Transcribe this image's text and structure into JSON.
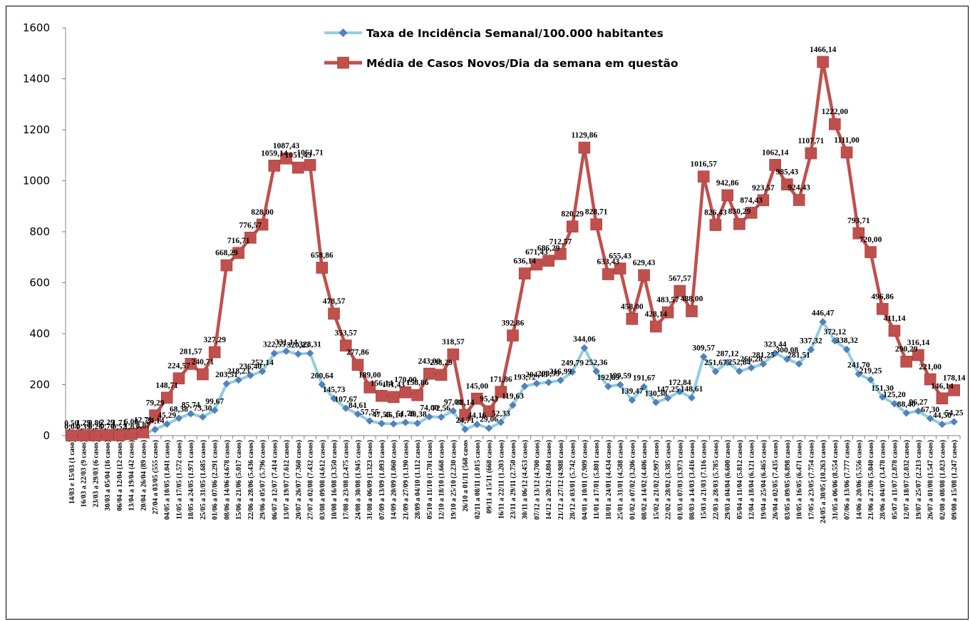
{
  "chart_data": {
    "type": "line",
    "title": "",
    "xlabel": "",
    "ylabel": "",
    "ylim": [
      0,
      1600
    ],
    "yticks": [
      0,
      200,
      400,
      600,
      800,
      1000,
      1200,
      1400,
      1600
    ],
    "grid": false,
    "legend_position": "top-center",
    "categories": [
      "14/03 e 15/03 (1 caso)",
      "16/03 a 22/03 (9 casos)",
      "23/03 a 29/03 (6 casos)",
      "30/03 a 05/04 (16 casos)",
      "06/04 a 12/04 (12 casos)",
      "13/04 a 19/04 (42 casos)",
      "20/04 a 26/04 (89 casos)",
      "27/04 a 03/05 (555 casos)",
      "04/05 a 10/05 (1.041 casos)",
      "11/05 a 17/05 (1.572 casos)",
      "18/05 a 24/05 (1.971 casos)",
      "25/05 a 31/05 (1.685 casos)",
      "01/06 a 07/06 (2.291 casos)",
      "08/06 a 14/06 (4.678 casos)",
      "15/06 a 21/06 (5.017 casos)",
      "22/06 a 28/06 (5.436 casos)",
      "29/06 a 05/07 (5.796 casos)",
      "06/07 a 12/07 (7.414 casos)",
      "13/07 a 19/07 (7.612 casos)",
      "20/07 a 26/07 (7.360 casos)",
      "27/07 a 02/08 (7.432 casos)",
      "03/08 a 09/08 (4.612 casos)",
      "10/08 a 16/08 (3.350 casos)",
      "17/08 a 23/08 (2.475 casos)",
      "24/08 a 30/08 (1.945 casos)",
      "31/08 a 06/09 (1.323 casos)",
      "07/09 a 13/09 (1.093 casos)",
      "14/09 a 20/09 (1.060 casos)",
      "21/09 a 27/09 (1.190 casos)",
      "28/09 a 04/10 (1.112 casos)",
      "05/10 a 11/10 (1.701 casos)",
      "12/10 a 18/10 (1.668 casos)",
      "19/10 a 25/10 (2.230 casos)",
      "26/10 a 01/11 (568 casos)",
      "02/11 a 08/11 (1.015 casos)",
      "09/11 a 15/11 (668 casos)",
      "16/11 a 22/11 (1.203 casos)",
      "23/11 a 29/11 (2.750 casos)",
      "30/11 a 06/12 (4.453 casos)",
      "07/12 a 13/12 (4.700 casos)",
      "14/12 a 20/12 (4.804 casos)",
      "21/12 a 27/12 (4.988 casos)",
      "28/12 a 03/01 (5.742 casos)",
      "04/01 a 10/01 (7.909 casos)",
      "11/01 a 17/01 (5.801 casos)",
      "18/01 a 24/01 (4.434 casos)",
      "25/01 a 31/01 (4.588 casos)",
      "01/02 a 07/02 (3.206 casos)",
      "08/02 a 14/02 (4.406 casos)",
      "15/02 a 21/02 (2.997 casos)",
      "22/02 a 28/02 (3.385 casos)",
      "01/03 a 07/03 (3.973 casos)",
      "08/03 a 14/03 (3.416 casos)",
      "15/03 a 21/03 (7.116 casos)",
      "22/03 a 28/03 (5.785 casos)",
      "29/03 a 04/04 (6.600 casos)",
      "05/04 a 11/04 (5.812 casos)",
      "12/04 a 18/04 (6.121 casos)",
      "19/04 a 25/04 (6.465 casos)",
      "26/04 a 02/05 (7.435 casos)",
      "03/05 a 09/05 (6.898 casos)",
      "10/05 a 16/05 (6.471 casos)",
      "17/05 a 23/05 (7.754 casos)",
      "24/05 a 30/05 (10.263 casos)",
      "31/05 a 06/06 (8.554 casos)",
      "07/06 a 13/06 (7.777 casos)",
      "14/06 a 20/06 (5.556 casos)",
      "21/06 a 27/06 (5.040 casos)",
      "28/06 a 04/07 (3.478 casos)",
      "05/07 a 11/07 (2.878 casos)",
      "12/07 a 18/07 (2.032 casos)",
      "19/07 a 25/07 (2.213 casos)",
      "26/07 a 01/08 (1.547 casos)",
      "02/08 a 08/08 (1.023 casos)",
      "09/08 a 15/08 (1.247 casos)"
    ],
    "xtick_labels": [
      "14/03 e 15/03 (1 caso)",
      "16/03 a 22/03 (9 casos)",
      "23/03 a 29/03 (6 casos)",
      "30/03 a 05/04 (16 casos)",
      "06/04 a 12/04 (12 casos)",
      "13/04 a 19/04 (42 casos)",
      "20/04 a 26/04 (89 casos)",
      "27/04 a 03/05 (555 casos)",
      "04/05 a 10/05 (1.041 casos)",
      "11/05 a 17/05 (1.572 casos)",
      "18/05 a 24/05 (1.971 casos)",
      "25/05 a 31/05 (1.685 casos)",
      "01/06 a 07/06 (2.291 casos)",
      "08/06 a 14/06 (4.678 casos)",
      "15/06 a 21/06 (5.017 casos)",
      "22/06 a 28/06 (5.436 casos)",
      "29/06 a 05/07 (5.796 casos)",
      "06/07 a 12/07 (7.414 casos)",
      "13/07 a 19/07 (7.612 casos)",
      "20/07 a 26/07 (7.360 casos)",
      "27/07 a 02/08 (7.432 casos)",
      "03/08 a 09/08 (4.612 casos)",
      "10/08 a 16/08 (3.350 casos)",
      "17/08 a 23/08 (2.475 casos)",
      "24/08 a 30/08 (1.945 casos)",
      "31/08 a 06/09 (1.323 casos)",
      "07/09 a 13/09 (1.093 casos)",
      "14/09 a 20/09 (1.060 casos)",
      "21/09 a 27/09 (1.190 casos)",
      "28/09 a 04/10 (1.112 casos)",
      "05/10 a 11/10 (1.701 casos)",
      "12/10 a 18/10 (1.668 casos)",
      "19/10 a 25/10 (2.230 casos)",
      "26/10 a 01/11 (568 casos",
      "02/11 a 08/11 (1.015 casos)",
      "09/11 a 15/11 (668 casos)",
      "16/11 a 22/11 (1.203 casos)",
      "23/11 a 29/11 (2.750 casos)",
      "30/11 a 06/12 (4.453 casos)",
      "07/12 a 13/12 (4.700 casos)",
      "14/12 a 20/12 (4.804 casos)",
      "21/12 a 27/12 (4.988 casos)",
      "28/12 a 03/01 (5.742 casos)",
      "04/01 a 10/01 (7.909 casos)",
      "11/01 a 17/01 (5.801 casos)",
      "18/01 a 24/01 (4.434 casos)",
      "25/01 a 31/01 (4.588 casos)",
      "01/02 a 07/02 (3.206 casos)",
      "08/02 a 14/02 (4.406 casos)",
      "15/02 a 21/02 (2.997 casos)",
      "22/02 a 28/02 (3.385 casos)",
      "01/03 a 07/03 (3.973 casos)",
      "08/03 a 14/03 (3.416 casos)",
      "15/03 a 21/03 (7.116 casos)",
      "22/03 a 28/03 (5.785 casos)",
      "29/03 a 04/04 (6.600 casos)",
      "05/04 a 11/04 (5.812 casos)",
      "12/04 a 18/04 (6.121 casos)",
      "19/04 a 25/04 (6.465 casos)",
      "26/04 a 02/05 (7.435 casos)",
      "03/05 a 09/05 (6.898 casos)",
      "10/05 a 16/05 (6.471 casos)",
      "17/05 a 23/05 (7.754 casos)",
      "24/05 a 30/05 (10.263 casos)",
      "31/05 a 06/06 (8.554 casos)",
      "07/06 a 13/06 (7.777 casos)",
      "14/06 a 20/06 (5.556 casos)",
      "21/06 a 27/06 (5.040 casos)",
      "28/06 a 04/07 (3.478 casos)",
      "05/07 a 11/07 (2.878 casos)",
      "12/07 a 18/07 (2.032 casos)",
      "19/07 a 25/07 (2.213 casos)",
      "26/07 a 01/08 (1.547 casos)",
      "02/08 a 08/08 (1.023 casos)",
      "09/08 a 15/08 (1.247 casos)"
    ],
    "series": [
      {
        "name": "Média de Casos Novos/Dia da semana em questão",
        "color": "#C0504D",
        "marker": "square",
        "values": [
          0.5,
          1.29,
          0.86,
          2.29,
          1.71,
          6.0,
          12.71,
          79.29,
          148.71,
          224.57,
          281.57,
          240.71,
          327.29,
          668.29,
          716.71,
          776.57,
          828.0,
          1059.14,
          1087.43,
          1051.43,
          1061.71,
          658.86,
          478.57,
          353.57,
          277.86,
          189.0,
          156.14,
          151.43,
          170.0,
          158.86,
          243.0,
          238.29,
          318.57,
          81.14,
          145.0,
          95.43,
          171.86,
          392.86,
          636.14,
          671.43,
          686.29,
          712.57,
          820.29,
          1129.86,
          828.71,
          633.43,
          655.43,
          458.0,
          629.43,
          428.14,
          483.57,
          567.57,
          488.0,
          1016.57,
          826.43,
          942.86,
          830.29,
          874.43,
          923.57,
          1062.14,
          985.43,
          924.43,
          1107.71,
          1466.14,
          1222.0,
          1111.0,
          793.71,
          720.0,
          496.86,
          411.14,
          290.29,
          316.14,
          221.0,
          146.14,
          178.14
        ],
        "labels": [
          "0,50",
          "1,29",
          "0,86",
          "2,29",
          "1,71",
          "6,00",
          "12,71",
          "79,29",
          "148,71",
          "224,57",
          "281,57",
          "240,71",
          "327,29",
          "668,29",
          "716,71",
          "776,57",
          "828,00",
          "1059,14",
          "1087,43",
          "1051,43",
          "1061,71",
          "658,86",
          "478,57",
          "353,57",
          "277,86",
          "189,00",
          "156,14",
          "151,43",
          "170,00",
          "158,86",
          "243,00",
          "238,29",
          "318,57",
          "81,14",
          "145,00",
          "95,43",
          "171,86",
          "392,86",
          "636,14",
          "671,43",
          "686,29",
          "712,57",
          "820,29",
          "1129,86",
          "828,71",
          "633,43",
          "655,43",
          "458,00",
          "629,43",
          "428,14",
          "483,57",
          "567,57",
          "488,00",
          "1016,57",
          "826,43",
          "942,86",
          "830,29",
          "874,43",
          "923,57",
          "1062,14",
          "985,43",
          "924,43",
          "1107,71",
          "1466,14",
          "1222,00",
          "1111,00",
          "793,71",
          "720,00",
          "496,86",
          "411,14",
          "290,29",
          "316,14",
          "221,00",
          "146,14",
          "178,14"
        ]
      },
      {
        "name": "Taxa de Incidência Semanal/100.000 habitantes",
        "color": "#93CDDD",
        "marker": "diamond",
        "values": [
          0.04,
          0.39,
          0.26,
          0.7,
          0.52,
          1.83,
          3.87,
          24.14,
          45.29,
          68.38,
          85.74,
          73.3,
          99.67,
          203.51,
          218.23,
          236.4,
          252.14,
          322.55,
          331.14,
          320.23,
          323.31,
          200.64,
          145.73,
          107.67,
          84.61,
          57.55,
          47.55,
          46.14,
          51.78,
          48.38,
          74.0,
          72.56,
          97.01,
          24.71,
          44.16,
          29.06,
          52.33,
          119.63,
          193.72,
          204.45,
          208.99,
          216.99,
          249.79,
          344.06,
          252.36,
          192.89,
          199.59,
          139.47,
          191.67,
          130.38,
          147.25,
          172.84,
          148.61,
          309.57,
          251.67,
          287.12,
          252.84,
          266.28,
          281.25,
          323.44,
          300.08,
          281.51,
          337.32,
          446.47,
          372.12,
          338.32,
          241.7,
          219.25,
          151.3,
          125.2,
          88.4,
          96.27,
          67.3,
          44.5,
          54.25
        ],
        "labels": [
          "0,04",
          "0,39",
          "0,26",
          "0,70",
          "0,52",
          "1,83",
          "3,87",
          "24,14",
          "45,29",
          "68,38",
          "85,74",
          "73,30",
          "99,67",
          "203,51",
          "218,23",
          "236,40",
          "252,14",
          "322,55",
          "331,14",
          "320,23",
          "323,31",
          "200,64",
          "145,73",
          "107,67",
          "84,61",
          "57,55",
          "47,55",
          "46,14",
          "51,78",
          "48,38",
          "74,00",
          "72,56",
          "97,01",
          "24,71",
          "44,16",
          "29,06",
          "52,33",
          "119,63",
          "193,72",
          "204,45",
          "208,99",
          "216,99",
          "249,79",
          "344,06",
          "252,36",
          "192,89",
          "199,59",
          "139,47",
          "191,67",
          "130,38",
          "147,25",
          "172,84",
          "148,61",
          "309,57",
          "251,67",
          "287,12",
          "252,84",
          "266,28",
          "281,25",
          "323,44",
          "300,08",
          "281,51",
          "337,32",
          "446,47",
          "372,12",
          "338,32",
          "241,70",
          "219,25",
          "151,30",
          "125,20",
          "88,40",
          "96,27",
          "67,30",
          "44,50",
          "54,25"
        ]
      }
    ],
    "legend": [
      {
        "label": "Taxa de Incidência Semanal/100.000 habitantes",
        "color": "#93CDDD",
        "marker": "diamond"
      },
      {
        "label": "Média de Casos Novos/Dia da semana em questão",
        "color": "#C0504D",
        "marker": "square"
      }
    ]
  }
}
